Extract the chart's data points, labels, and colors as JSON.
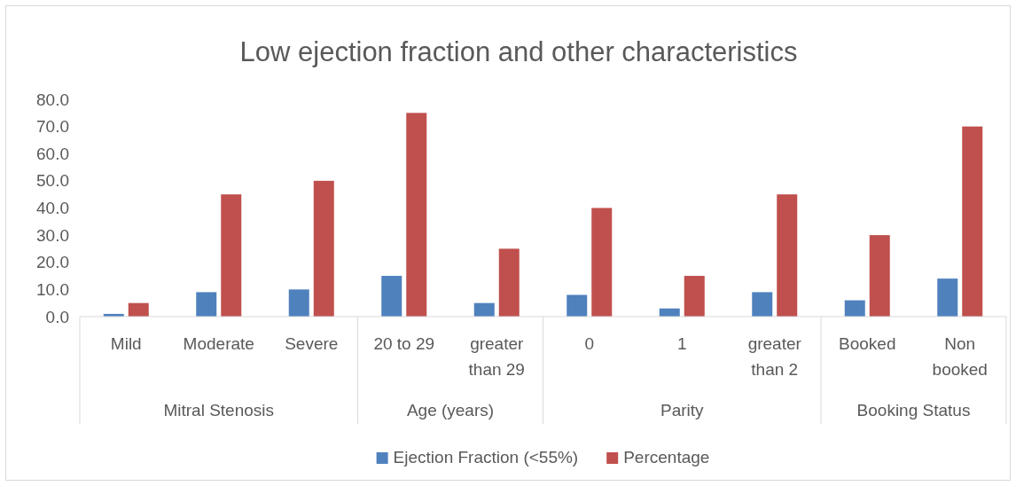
{
  "chart_data": {
    "type": "bar",
    "title": "Low ejection fraction and other characteristics",
    "categories": [
      "Mild",
      "Moderate",
      "Severe",
      "20 to 29",
      "greater than 29",
      "0",
      "1",
      "greater than 2",
      "Booked",
      "Non booked"
    ],
    "series": [
      {
        "name": "Ejection Fraction (<55%)",
        "color": "#4f81bd",
        "values": [
          1,
          9,
          10,
          15,
          5,
          8,
          3,
          9,
          6,
          14
        ]
      },
      {
        "name": "Percentage",
        "color": "#c0504d",
        "values": [
          5,
          45,
          50,
          75,
          25,
          40,
          15,
          45,
          30,
          70
        ]
      }
    ],
    "ylim": [
      0,
      80
    ],
    "yticks": [
      {
        "value": 0,
        "label": "0.0"
      },
      {
        "value": 10,
        "label": "10.0"
      },
      {
        "value": 20,
        "label": "20.0"
      },
      {
        "value": 30,
        "label": "30.0"
      },
      {
        "value": 40,
        "label": "40.0"
      },
      {
        "value": 50,
        "label": "50.0"
      },
      {
        "value": 60,
        "label": "60.0"
      },
      {
        "value": 70,
        "label": "70.0"
      },
      {
        "value": 80,
        "label": "80.0"
      }
    ],
    "annotations": [
      "Mitral Stenosis",
      "Age (years)",
      "Parity",
      "Booking Status"
    ],
    "grid": false,
    "legend": "bottom"
  }
}
